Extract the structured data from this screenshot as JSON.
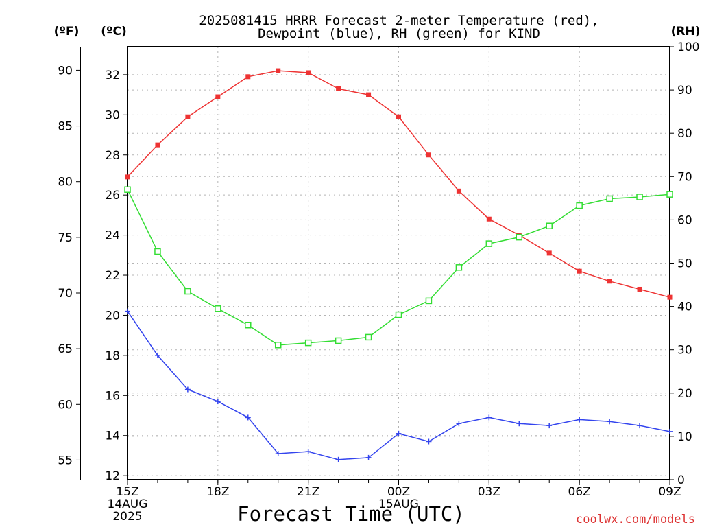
{
  "chart_data": {
    "type": "line",
    "title_line1": "2025081415 HRRR Forecast 2-meter Temperature (red),",
    "title_line2": "Dewpoint (blue), RH (green) for KIND",
    "xlabel": "Forecast Time (UTC)",
    "credit": "coolwx.com/models",
    "unit_labels": {
      "f": "(ºF)",
      "c": "(ºC)",
      "rh": "(RH)"
    },
    "x": [
      0,
      1,
      2,
      3,
      4,
      5,
      6,
      7,
      8,
      9,
      10,
      11,
      12,
      13,
      14,
      15,
      16,
      17,
      18
    ],
    "xlim": [
      0,
      18
    ],
    "x_ticks": [
      {
        "x": 0,
        "line1": "15Z",
        "line2": "14AUG",
        "line3": "2025"
      },
      {
        "x": 3,
        "line1": "18Z"
      },
      {
        "x": 6,
        "line1": "21Z"
      },
      {
        "x": 9,
        "line1": "00Z",
        "line2": "15AUG"
      },
      {
        "x": 12,
        "line1": "03Z"
      },
      {
        "x": 15,
        "line1": "06Z"
      },
      {
        "x": 18,
        "line1": "09Z"
      }
    ],
    "celsius_axis": {
      "ylim": [
        11.8,
        33.4
      ],
      "ticks": [
        12,
        14,
        16,
        18,
        20,
        22,
        24,
        26,
        28,
        30,
        32
      ]
    },
    "fahrenheit_axis": {
      "ticks": [
        55,
        60,
        65,
        70,
        75,
        80,
        85,
        90
      ]
    },
    "rh_axis": {
      "ylim": [
        0,
        100
      ],
      "ticks": [
        0,
        10,
        20,
        30,
        40,
        50,
        60,
        70,
        80,
        90,
        100
      ]
    },
    "grid": true,
    "series": [
      {
        "name": "Temperature",
        "unit": "C",
        "color": "#ee3333",
        "marker": "filled-square",
        "values": [
          26.9,
          28.5,
          29.9,
          30.9,
          31.9,
          32.2,
          32.1,
          31.3,
          31.0,
          29.9,
          28.0,
          26.2,
          24.8,
          24.0,
          23.1,
          22.2,
          21.7,
          21.3,
          20.9
        ]
      },
      {
        "name": "Dewpoint",
        "unit": "C",
        "color": "#3344ee",
        "marker": "plus",
        "values": [
          20.2,
          18.0,
          16.3,
          15.7,
          14.9,
          13.1,
          13.2,
          12.8,
          12.9,
          14.1,
          13.7,
          14.6,
          14.9,
          14.6,
          14.5,
          14.8,
          14.7,
          14.5,
          14.2
        ]
      },
      {
        "name": "RH",
        "unit": "%",
        "color": "#33dd33",
        "marker": "open-square",
        "values": [
          67.0,
          52.7,
          43.5,
          39.5,
          35.7,
          31.1,
          31.6,
          32.1,
          32.9,
          38.1,
          41.3,
          49.0,
          54.5,
          56.0,
          58.6,
          63.3,
          64.9,
          65.3,
          65.9
        ]
      }
    ]
  }
}
